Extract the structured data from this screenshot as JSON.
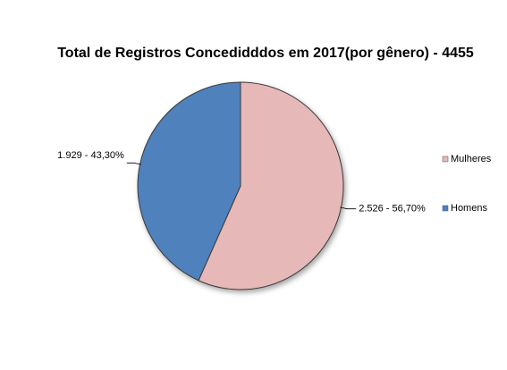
{
  "chart_data": {
    "type": "pie",
    "title": "Total de Registros Concedidddos em 2017(por gênero)  - 4455",
    "categories": [
      "Mulheres",
      "Homens"
    ],
    "values": [
      2526,
      1929
    ],
    "value_labels": [
      "2.526 - 56,70%",
      "1.929 - 43,30%"
    ],
    "colors": [
      "#e6b9b8",
      "#4f81bd"
    ],
    "legend": "right"
  }
}
